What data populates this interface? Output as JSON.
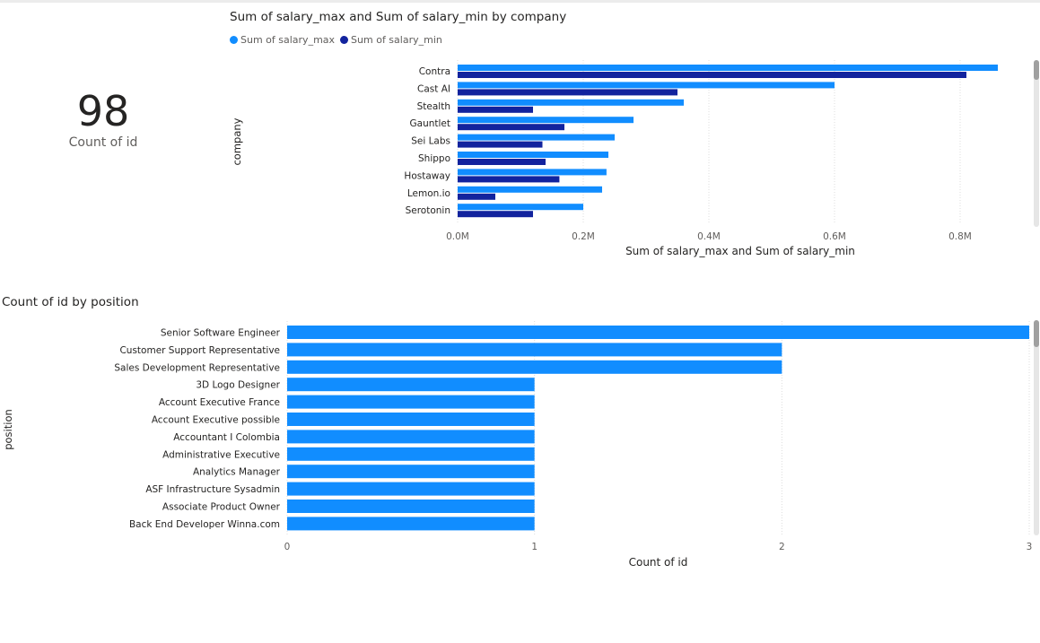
{
  "kpi": {
    "value": "98",
    "label": "Count of id"
  },
  "colors": {
    "series_max": "#118dff",
    "series_min": "#12239e",
    "grid": "#e1e1e1",
    "tick": "#605e5c"
  },
  "chart_data": [
    {
      "type": "bar",
      "orientation": "horizontal",
      "title": "Sum of salary_max and Sum of salary_min by company",
      "ylabel": "company",
      "xlabel": "Sum of salary_max and Sum of salary_min",
      "legend_position": "top-left",
      "grid": true,
      "xlim": [
        0,
        900000
      ],
      "xticks": [
        0,
        200000,
        400000,
        600000,
        800000
      ],
      "xtick_labels": [
        "0.0M",
        "0.2M",
        "0.4M",
        "0.6M",
        "0.8M"
      ],
      "categories": [
        "Contra",
        "Cast AI",
        "Stealth",
        "Gauntlet",
        "Sei Labs",
        "Shippo",
        "Hostaway",
        "Lemon.io",
        "Serotonin"
      ],
      "series": [
        {
          "name": "Sum of salary_max",
          "color": "#118dff",
          "values": [
            860000,
            600000,
            360000,
            280000,
            250000,
            240000,
            237000,
            230000,
            200000
          ]
        },
        {
          "name": "Sum of salary_min",
          "color": "#12239e",
          "values": [
            810000,
            350000,
            120000,
            170000,
            135000,
            140000,
            162000,
            60000,
            120000
          ]
        }
      ]
    },
    {
      "type": "bar",
      "orientation": "horizontal",
      "title": "Count of id by position",
      "ylabel": "position",
      "xlabel": "Count of id",
      "grid": true,
      "xlim": [
        0,
        3
      ],
      "xticks": [
        0,
        1,
        2,
        3
      ],
      "xtick_labels": [
        "0",
        "1",
        "2",
        "3"
      ],
      "categories": [
        "Senior Software Engineer",
        "Customer Support Representative",
        "Sales Development Representative",
        "3D Logo Designer",
        "Account Executive France",
        "Account Executive possible",
        "Accountant I Colombia",
        "Administrative Executive",
        "Analytics Manager",
        "ASF Infrastructure Sysadmin",
        "Associate Product Owner",
        "Back End Developer Winna.com"
      ],
      "values": [
        3,
        2,
        2,
        1,
        1,
        1,
        1,
        1,
        1,
        1,
        1,
        1
      ],
      "color": "#118dff"
    }
  ]
}
